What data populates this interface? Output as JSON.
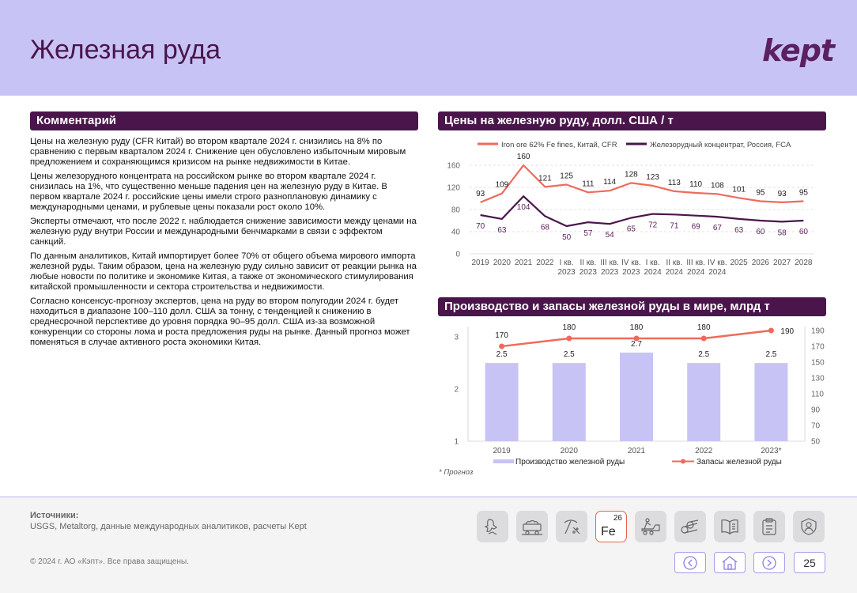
{
  "header": {
    "title": "Железная руда",
    "logo": "kept"
  },
  "comment": {
    "heading": "Комментарий",
    "paragraphs": [
      "Цены на железную руду (CFR Китай) во втором квартале 2024 г. снизились на 8% по сравнению с первым кварталом 2024 г. Снижение цен обусловлено избыточным мировым предложением и сохраняющимся кризисом на рынке недвижимости в Китае.",
      "Цены железорудного концентрата на российском рынке во втором квартале 2024 г. снизилась на 1%, что существенно меньше падения цен на железную руду в Китае. В первом квартале 2024 г. российские цены имели строго разноплановую динамику с международными ценами, и рублевые цены показали рост около 10%.",
      "Эксперты отмечают, что после 2022 г. наблюдается снижение зависимости между ценами на железную руду внутри России и международными бенчмарками в связи с эффектом санкций.",
      "По данным аналитиков, Китай импортирует более 70% от общего объема мирового импорта железной руды. Таким образом, цена на железную руду сильно зависит от реакции рынка на любые новости по политике и экономике Китая, а также от экономического стимулирования китайской промышленности и сектора строительства и недвижимости.",
      "Согласно консенсус-прогнозу экспертов, цена на руду во втором полугодии 2024 г. будет находиться в диапазоне 100–110 долл. США за тонну, с тенденцией к снижению в среднесрочной перспективе до уровня порядка 90–95 долл. США из-за возможной конкуренции со стороны лома и роста предложения руды на рынке. Данный прогноз может поменяться в случае активного роста экономики Китая."
    ]
  },
  "chart_data": [
    {
      "type": "line",
      "title": "Цены на железную руду, долл. США / т",
      "categories": [
        "2019",
        "2020",
        "2021",
        "2022",
        "I кв. 2023",
        "II кв. 2023",
        "III кв. 2023",
        "IV кв. 2023",
        "I кв. 2024",
        "II кв. 2024",
        "III кв. 2024",
        "IV кв. 2024",
        "2025",
        "2026",
        "2027",
        "2028"
      ],
      "series": [
        {
          "name": "Iron ore 62% Fe fines, Китай, CFR",
          "color": "#ef6a5c",
          "values": [
            93,
            109,
            160,
            121,
            125,
            111,
            114,
            128,
            123,
            113,
            110,
            108,
            101,
            95,
            93,
            95
          ]
        },
        {
          "name": "Железорудный концентрат, Россия, FCA",
          "color": "#4a154b",
          "values": [
            70,
            63,
            104,
            68,
            50,
            57,
            54,
            65,
            72,
            71,
            69,
            67,
            63,
            60,
            58,
            60
          ]
        }
      ],
      "ylim": [
        0,
        160
      ],
      "yticks": [
        0,
        40,
        80,
        120,
        160
      ],
      "grid": true,
      "legend": "top"
    },
    {
      "type": "bar",
      "title": "Производство и запасы железной руды в мире, млрд т",
      "categories": [
        "2019",
        "2020",
        "2021",
        "2022",
        "2023*"
      ],
      "series": [
        {
          "name": "Производство железной руды",
          "type": "bar",
          "color": "#c8c3f5",
          "axis": "left",
          "values": [
            2.5,
            2.5,
            2.7,
            2.5,
            2.5
          ]
        },
        {
          "name": "Запасы железной руды",
          "type": "line",
          "color": "#ef6a5c",
          "axis": "right",
          "values": [
            170,
            180,
            180,
            180,
            190
          ]
        }
      ],
      "ylim_left": [
        1,
        3.2
      ],
      "yticks_left": [
        1,
        2,
        3
      ],
      "ylim_right": [
        50,
        195
      ],
      "yticks_right": [
        50,
        70,
        90,
        110,
        130,
        150,
        170,
        190
      ],
      "legend": "bottom"
    }
  ],
  "footnote": "* Прогноз",
  "footer": {
    "sources_label": "Источники:",
    "sources_text": "USGS, Metaltorg, данные международных аналитиков, расчеты Kept",
    "copyright": "© 2024 г. АО «Кэпт». Все права защищены.",
    "fe_number": "26",
    "fe_symbol": "Fe",
    "page_number": "25",
    "icons": [
      "gold-icon",
      "coal-cart-icon",
      "mining-pick-icon",
      "fe-element-icon",
      "ore-machine-icon",
      "logs-icon",
      "book-icon",
      "clipboard-icon",
      "profile-icon"
    ]
  },
  "colors": {
    "accent": "#4a154b",
    "header_bg": "#c8c3f5",
    "red": "#ef6a5c",
    "bar": "#c8c3f5"
  }
}
